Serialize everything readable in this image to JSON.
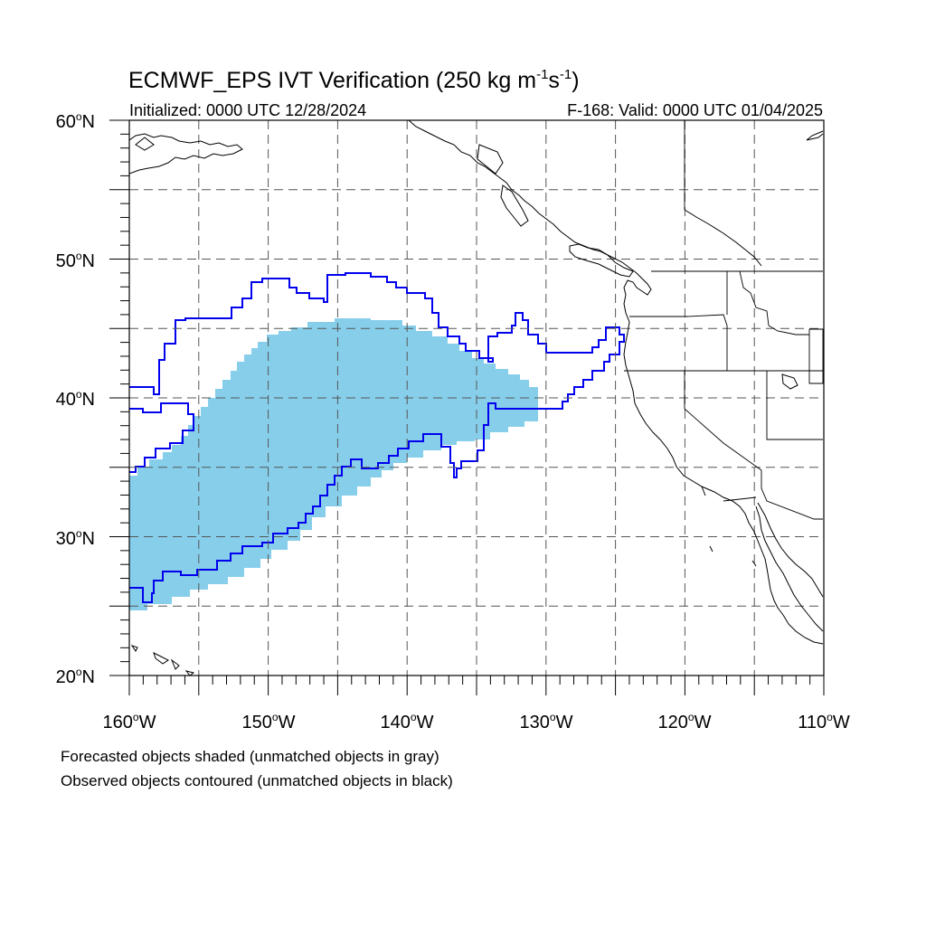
{
  "header": {
    "title_main": "ECMWF_EPS IVT Verification (250 kg m",
    "title_sup1": "-1",
    "title_mid": "s",
    "title_sup2": "-1",
    "title_end": ")",
    "initialized": "Initialized: 0000 UTC 12/28/2024",
    "valid": "F-168: Valid: 0000 UTC 01/04/2025"
  },
  "axes": {
    "lat_labels": [
      {
        "deg": "20",
        "hemi": "N",
        "value": 20
      },
      {
        "deg": "30",
        "hemi": "N",
        "value": 30
      },
      {
        "deg": "40",
        "hemi": "N",
        "value": 40
      },
      {
        "deg": "50",
        "hemi": "N",
        "value": 50
      },
      {
        "deg": "60",
        "hemi": "N",
        "value": 60
      }
    ],
    "lon_labels": [
      {
        "deg": "160",
        "hemi": "W",
        "value": -160
      },
      {
        "deg": "150",
        "hemi": "W",
        "value": -150
      },
      {
        "deg": "140",
        "hemi": "W",
        "value": -140
      },
      {
        "deg": "130",
        "hemi": "W",
        "value": -130
      },
      {
        "deg": "120",
        "hemi": "W",
        "value": -120
      },
      {
        "deg": "110",
        "hemi": "W",
        "value": -110
      }
    ],
    "lon_range": [
      -160,
      -110
    ],
    "lat_range": [
      20,
      60
    ],
    "grid_step_deg": 5,
    "grid": true
  },
  "legend": {
    "forecast_note": "Forecasted objects shaded (unmatched objects in gray)",
    "observed_note": "Observed objects contoured (unmatched objects in black)"
  },
  "colors": {
    "forecast_fill": "#87ceeb",
    "observed_contour": "#0000ee",
    "coastline": "#000000",
    "grid": "#555555"
  }
}
